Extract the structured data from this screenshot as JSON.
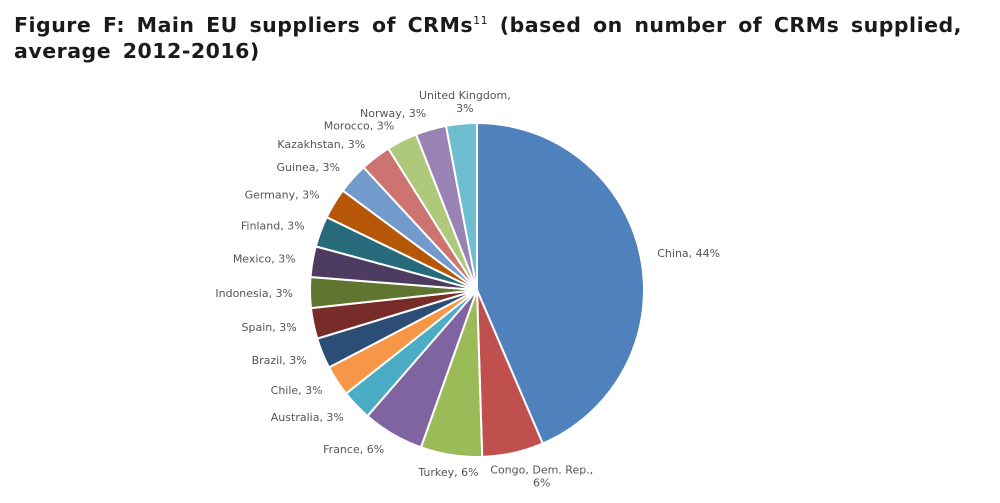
{
  "title": {
    "prefix": "Figure F: Main EU suppliers of CRMs",
    "footnote": "11",
    "suffix": " (based on number of CRMs supplied, average 2012-2016)"
  },
  "chart_data": {
    "type": "pie",
    "start": "top, clockwise",
    "slices": [
      {
        "label": "China",
        "value": 44,
        "color": "#4f81bd"
      },
      {
        "label": "Congo, Dem. Rep.",
        "value": 6,
        "color": "#c0504d"
      },
      {
        "label": "Turkey",
        "value": 6,
        "color": "#9bbb59"
      },
      {
        "label": "France",
        "value": 6,
        "color": "#8064a2"
      },
      {
        "label": "Australia",
        "value": 3,
        "color": "#4bacc6"
      },
      {
        "label": "Chile",
        "value": 3,
        "color": "#f79646"
      },
      {
        "label": "Brazil",
        "value": 3,
        "color": "#2c4d75"
      },
      {
        "label": "Spain",
        "value": 3,
        "color": "#772c2a"
      },
      {
        "label": "Indonesia",
        "value": 3,
        "color": "#5f7530"
      },
      {
        "label": "Mexico",
        "value": 3,
        "color": "#4d3b62"
      },
      {
        "label": "Finland",
        "value": 3,
        "color": "#276a7c"
      },
      {
        "label": "Germany",
        "value": 3,
        "color": "#b65708"
      },
      {
        "label": "Guinea",
        "value": 3,
        "color": "#729aca"
      },
      {
        "label": "Kazakhstan",
        "value": 3,
        "color": "#cd7371"
      },
      {
        "label": "Morocco",
        "value": 3,
        "color": "#afc97a"
      },
      {
        "label": "Norway",
        "value": 3,
        "color": "#9983b5"
      },
      {
        "label": "United Kingdom",
        "value": 3,
        "color": "#6fbdd1"
      }
    ],
    "data_labels": [
      "China, 44%",
      "Congo, Dem. Rep., 6%",
      "Turkey, 6%",
      "France, 6%",
      "Australia, 3%",
      "Chile, 3%",
      "Brazil, 3%",
      "Spain, 3%",
      "Indonesia, 3%",
      "Mexico, 3%",
      "Finland, 3%",
      "Germany, 3%",
      "Guinea, 3%",
      "Kazakhstan, 3%",
      "Morocco, 3%",
      "Norway, 3%",
      "United Kingdom, 3%"
    ],
    "legend": "none"
  }
}
